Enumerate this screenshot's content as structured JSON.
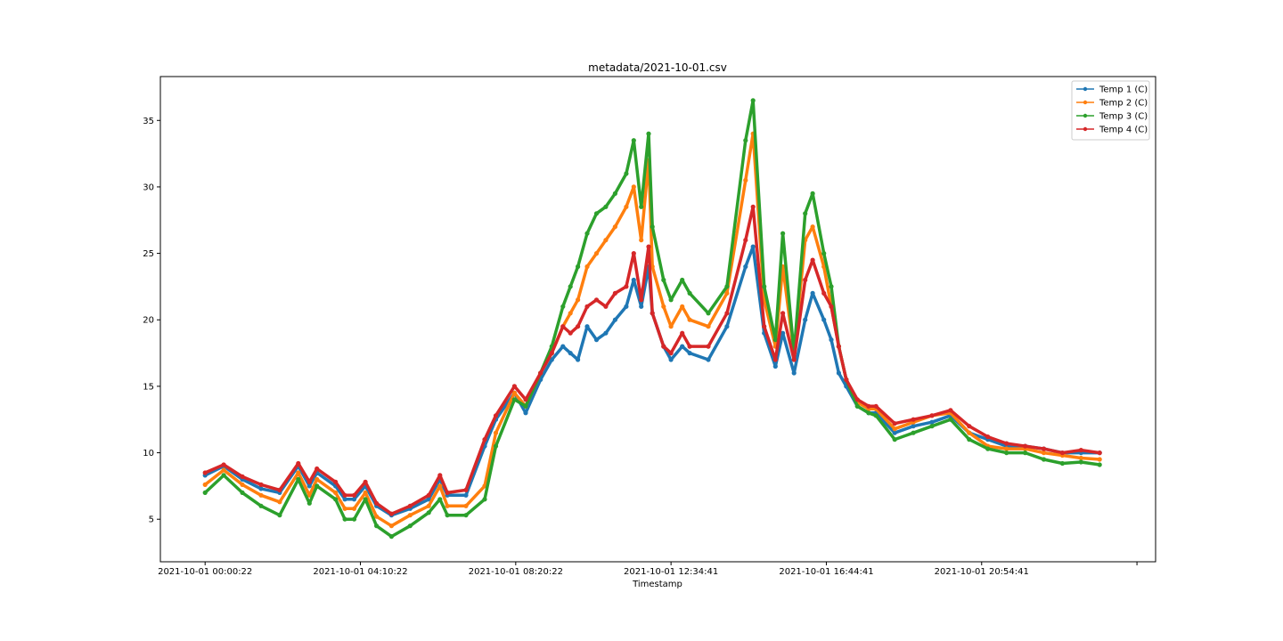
{
  "chart_data": {
    "type": "line",
    "title": "metadata/2021-10-01.csv",
    "xlabel": "Timestamp",
    "ylabel": "",
    "grid": false,
    "legend_position": "upper right",
    "x_ticks": [
      "2021-10-01 00:00:22",
      "2021-10-01 04:10:22",
      "2021-10-01 08:20:22",
      "2021-10-01 12:34:41",
      "2021-10-01 16:44:41",
      "2021-10-01 20:54:41"
    ],
    "y_ticks": [
      5,
      10,
      15,
      20,
      25,
      30,
      35
    ],
    "ylim": [
      1.8,
      38.3
    ],
    "xlim_hours": [
      -1.2,
      25.5
    ],
    "series": [
      {
        "name": "Temp 1 (C)",
        "color": "#1f77b4",
        "x_hours": [
          0,
          0.5,
          1,
          1.5,
          2,
          2.5,
          2.8,
          3,
          3.5,
          3.75,
          4,
          4.3,
          4.6,
          5,
          5.5,
          6,
          6.3,
          6.5,
          7,
          7.5,
          7.8,
          8.3,
          8.6,
          9,
          9.3,
          9.6,
          9.8,
          10,
          10.25,
          10.5,
          10.75,
          11,
          11.3,
          11.5,
          11.7,
          11.9,
          12,
          12.3,
          12.5,
          12.8,
          13,
          13.5,
          14,
          14.5,
          14.7,
          15,
          15.3,
          15.5,
          15.8,
          16.1,
          16.3,
          16.6,
          16.8,
          17,
          17.2,
          17.5,
          17.8,
          18,
          18.5,
          19,
          19.5,
          20,
          20.5,
          21,
          21.5,
          22,
          22.5,
          23,
          23.5,
          24
        ],
        "y": [
          8.3,
          9.0,
          8.0,
          7.3,
          7.0,
          9.0,
          7.5,
          8.5,
          7.5,
          6.5,
          6.5,
          7.5,
          6.0,
          5.3,
          5.8,
          6.5,
          8.0,
          6.8,
          6.8,
          10.5,
          12.5,
          14.5,
          13.0,
          15.5,
          17.0,
          18.0,
          17.5,
          17.0,
          19.5,
          18.5,
          19.0,
          20.0,
          21.0,
          23.0,
          21.0,
          24.0,
          20.5,
          18.0,
          17.0,
          18.0,
          17.5,
          17.0,
          19.5,
          24.0,
          25.5,
          19.0,
          16.5,
          19.0,
          16.0,
          20.0,
          22.0,
          20.0,
          18.5,
          16.0,
          15.0,
          13.5,
          13.0,
          13.0,
          11.5,
          12.0,
          12.3,
          12.8,
          11.5,
          11.0,
          10.5,
          10.5,
          10.3,
          10.0,
          10.0,
          10.0
        ]
      },
      {
        "name": "Temp 2 (C)",
        "color": "#ff7f0e",
        "x_hours": [
          0,
          0.5,
          1,
          1.5,
          2,
          2.5,
          2.8,
          3,
          3.5,
          3.75,
          4,
          4.3,
          4.6,
          5,
          5.5,
          6,
          6.3,
          6.5,
          7,
          7.5,
          7.8,
          8.3,
          8.6,
          9,
          9.3,
          9.6,
          9.8,
          10,
          10.25,
          10.5,
          10.75,
          11,
          11.3,
          11.5,
          11.7,
          11.9,
          12,
          12.3,
          12.5,
          12.8,
          13,
          13.5,
          14,
          14.5,
          14.7,
          15,
          15.3,
          15.5,
          15.8,
          16.1,
          16.3,
          16.6,
          16.8,
          17,
          17.2,
          17.5,
          17.8,
          18,
          18.5,
          19,
          19.5,
          20,
          20.5,
          21,
          21.5,
          22,
          22.5,
          23,
          23.5,
          24
        ],
        "y": [
          7.6,
          8.7,
          7.6,
          6.8,
          6.3,
          8.5,
          6.8,
          8.0,
          7.0,
          5.8,
          5.8,
          7.0,
          5.2,
          4.5,
          5.3,
          6.0,
          7.5,
          6.0,
          6.0,
          7.5,
          11.5,
          14.5,
          13.5,
          16.0,
          17.5,
          19.5,
          20.5,
          21.5,
          24.0,
          25.0,
          26.0,
          27.0,
          28.5,
          30.0,
          26.0,
          32.0,
          24.0,
          21.0,
          19.5,
          21.0,
          20.0,
          19.5,
          22.0,
          30.5,
          34.0,
          21.5,
          18.0,
          24.0,
          17.5,
          26.0,
          27.0,
          24.0,
          21.0,
          18.0,
          15.5,
          13.8,
          13.3,
          13.3,
          11.8,
          12.3,
          12.8,
          13.0,
          11.5,
          10.5,
          10.3,
          10.3,
          10.0,
          9.8,
          9.6,
          9.5
        ]
      },
      {
        "name": "Temp 3 (C)",
        "color": "#2ca02c",
        "x_hours": [
          0,
          0.5,
          1,
          1.5,
          2,
          2.5,
          2.8,
          3,
          3.5,
          3.75,
          4,
          4.3,
          4.6,
          5,
          5.5,
          6,
          6.3,
          6.5,
          7,
          7.5,
          7.8,
          8.3,
          8.6,
          9,
          9.3,
          9.6,
          9.8,
          10,
          10.25,
          10.5,
          10.75,
          11,
          11.3,
          11.5,
          11.7,
          11.9,
          12,
          12.3,
          12.5,
          12.8,
          13,
          13.5,
          14,
          14.5,
          14.7,
          15,
          15.3,
          15.5,
          15.8,
          16.1,
          16.3,
          16.6,
          16.8,
          17,
          17.2,
          17.5,
          17.8,
          18,
          18.5,
          19,
          19.5,
          20,
          20.5,
          21,
          21.5,
          22,
          22.5,
          23,
          23.5,
          24
        ],
        "y": [
          7.0,
          8.3,
          7.0,
          6.0,
          5.3,
          8.0,
          6.2,
          7.5,
          6.5,
          5.0,
          5.0,
          6.5,
          4.5,
          3.7,
          4.5,
          5.5,
          6.5,
          5.3,
          5.3,
          6.5,
          10.5,
          14.0,
          13.5,
          16.0,
          18.0,
          21.0,
          22.5,
          24.0,
          26.5,
          28.0,
          28.5,
          29.5,
          31.0,
          33.5,
          28.5,
          34.0,
          27.0,
          23.0,
          21.5,
          23.0,
          22.0,
          20.5,
          22.5,
          33.5,
          36.5,
          22.5,
          18.5,
          26.5,
          17.5,
          28.0,
          29.5,
          25.0,
          22.5,
          18.0,
          15.5,
          13.5,
          13.0,
          12.8,
          11.0,
          11.5,
          12.0,
          12.5,
          11.0,
          10.3,
          10.0,
          10.0,
          9.5,
          9.2,
          9.3,
          9.1
        ]
      },
      {
        "name": "Temp 4 (C)",
        "color": "#d62728",
        "x_hours": [
          0,
          0.5,
          1,
          1.5,
          2,
          2.5,
          2.8,
          3,
          3.5,
          3.75,
          4,
          4.3,
          4.6,
          5,
          5.5,
          6,
          6.3,
          6.5,
          7,
          7.5,
          7.8,
          8.3,
          8.6,
          9,
          9.3,
          9.6,
          9.8,
          10,
          10.25,
          10.5,
          10.75,
          11,
          11.3,
          11.5,
          11.7,
          11.9,
          12,
          12.3,
          12.5,
          12.8,
          13,
          13.5,
          14,
          14.5,
          14.7,
          15,
          15.3,
          15.5,
          15.8,
          16.1,
          16.3,
          16.6,
          16.8,
          17,
          17.2,
          17.5,
          17.8,
          18,
          18.5,
          19,
          19.5,
          20,
          20.5,
          21,
          21.5,
          22,
          22.5,
          23,
          23.5,
          24
        ],
        "y": [
          8.5,
          9.1,
          8.2,
          7.6,
          7.2,
          9.2,
          7.8,
          8.8,
          7.8,
          6.8,
          6.8,
          7.8,
          6.2,
          5.4,
          6.0,
          6.8,
          8.3,
          7.0,
          7.2,
          11.0,
          12.8,
          15.0,
          14.0,
          16.0,
          17.5,
          19.5,
          19.0,
          19.5,
          21.0,
          21.5,
          21.0,
          22.0,
          22.5,
          25.0,
          21.5,
          25.5,
          20.5,
          18.0,
          17.5,
          19.0,
          18.0,
          18.0,
          20.5,
          26.0,
          28.5,
          19.5,
          17.0,
          20.5,
          17.0,
          23.0,
          24.5,
          22.0,
          21.0,
          18.0,
          15.5,
          14.0,
          13.5,
          13.5,
          12.2,
          12.5,
          12.8,
          13.2,
          12.0,
          11.2,
          10.7,
          10.5,
          10.3,
          10.0,
          10.2,
          10.0
        ]
      }
    ]
  }
}
